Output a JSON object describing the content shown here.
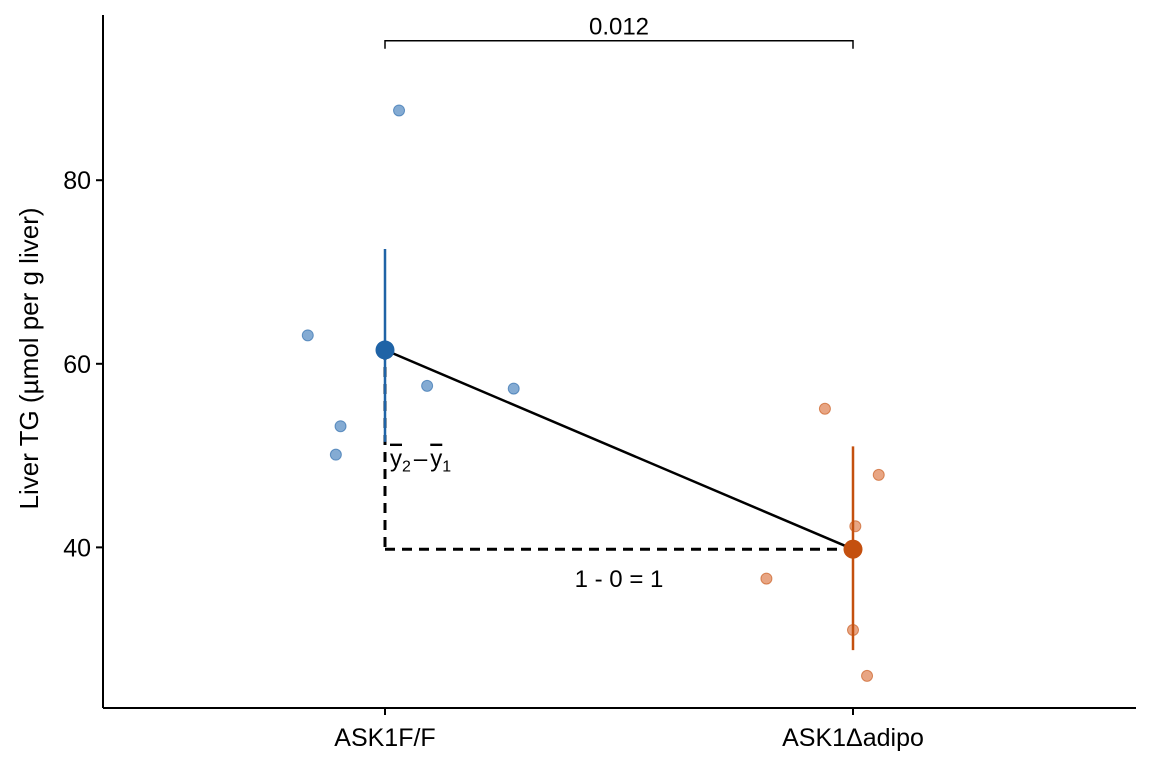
{
  "chart_data": {
    "type": "scatter",
    "title": "",
    "xlabel": "",
    "ylabel": "Liver TG (µmol per g liver)",
    "categories": [
      "ASK1F/F",
      "ASK1Δadipo"
    ],
    "ylim": [
      22.5,
      98
    ],
    "yticks": [
      40,
      60,
      80
    ],
    "grid": false,
    "legend": "none",
    "series": [
      {
        "color": "#1f63a6",
        "point_color": "#5b8fc4",
        "category_index": 0,
        "points": [
          {
            "jitter": 0.03,
            "y": 87.6
          },
          {
            "jitter": -0.165,
            "y": 63.1
          },
          {
            "jitter": 0.09,
            "y": 57.6
          },
          {
            "jitter": 0.275,
            "y": 57.3
          },
          {
            "jitter": -0.095,
            "y": 53.2
          },
          {
            "jitter": -0.105,
            "y": 50.1
          }
        ],
        "mean": 61.5,
        "ci": [
          51.5,
          72.5
        ]
      },
      {
        "color": "#c4500f",
        "point_color": "#e0875a",
        "category_index": 1,
        "points": [
          {
            "jitter": -0.06,
            "y": 55.1
          },
          {
            "jitter": 0.055,
            "y": 47.9
          },
          {
            "jitter": 0.005,
            "y": 42.3
          },
          {
            "jitter": -0.185,
            "y": 36.6
          },
          {
            "jitter": 0.0,
            "y": 31.0
          },
          {
            "jitter": 0.03,
            "y": 26.0
          }
        ],
        "mean": 39.8,
        "ci": [
          28.8,
          51.0
        ]
      }
    ],
    "annotations": {
      "pvalue": "0.012",
      "bracket_y": 95.2,
      "diff_label_main": "y",
      "diff_sub_2": "2",
      "diff_minus": "–",
      "diff_sub_1": "1",
      "run_label": "1 - 0 = 1"
    }
  }
}
